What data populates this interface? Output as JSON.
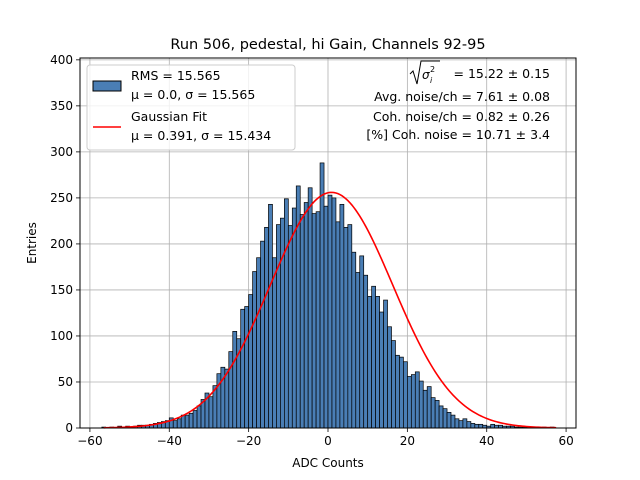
{
  "chart_data": {
    "type": "bar",
    "title": "Run 506, pedestal, hi Gain, Channels 92-95",
    "xlabel": "ADC Counts",
    "ylabel": "Entries",
    "xlim": [
      -62.5,
      62.5
    ],
    "ylim": [
      0,
      402
    ],
    "xticks": [
      -60,
      -40,
      -20,
      0,
      20,
      40,
      60
    ],
    "yticks": [
      0,
      50,
      100,
      150,
      200,
      250,
      300,
      350,
      400
    ],
    "grid": true,
    "legend_position": "top-left",
    "bin_width": 1,
    "bin_start": -40,
    "bin_counts": [
      11,
      8,
      10,
      14,
      14,
      16,
      19,
      24,
      31,
      38,
      34,
      46,
      59,
      66,
      64,
      83,
      105,
      97,
      129,
      132,
      145,
      170,
      185,
      203,
      218,
      243,
      185,
      221,
      228,
      249,
      220,
      239,
      263,
      232,
      245,
      261,
      233,
      235,
      288,
      241,
      253,
      250,
      224,
      243,
      218,
      221,
      191,
      169,
      187,
      166,
      143,
      154,
      143,
      126,
      139,
      110,
      95,
      79,
      77,
      72,
      56,
      58,
      61,
      51,
      41,
      45,
      33,
      30,
      24,
      21,
      17,
      14,
      10,
      8,
      10,
      7,
      5,
      4,
      4,
      3,
      2
    ],
    "tail_bins_x": [
      -57,
      -55,
      -53,
      -51,
      -49,
      -48,
      -47,
      -46,
      -45,
      -44,
      -43,
      -42,
      -41,
      41,
      42,
      43,
      44,
      45,
      46,
      47,
      48,
      49,
      50,
      52,
      54,
      56
    ],
    "tail_bins_y": [
      1,
      1,
      2,
      2,
      2,
      3,
      3,
      3,
      4,
      5,
      6,
      7,
      8,
      4,
      3,
      3,
      2,
      2,
      2,
      1,
      1,
      1,
      1,
      1,
      1,
      1
    ],
    "series": [
      {
        "name": "RMS = 15.565",
        "type": "histogram",
        "color": "#4a7eb5",
        "edgecolor": "#000000"
      },
      {
        "name": "Gaussian Fit",
        "type": "line",
        "color": "#ff0000",
        "amplitude": 256,
        "mean": 0.391,
        "sigma": 15.434
      }
    ],
    "legend": {
      "hist_line1": "RMS = 15.565",
      "hist_line2": "μ = 0.0, σ = 15.565",
      "fit_line1": "Gaussian Fit",
      "fit_line2": "μ = 0.391, σ = 15.434"
    },
    "annotations": {
      "sigma_value": "= 15.22 ± 0.15",
      "avg_noise": "Avg. noise/ch = 7.61 ± 0.08",
      "coh_noise": "Coh. noise/ch = 0.82 ± 0.26",
      "pct_coh_noise": "[%] Coh. noise = 10.71 ± 3.4"
    }
  }
}
